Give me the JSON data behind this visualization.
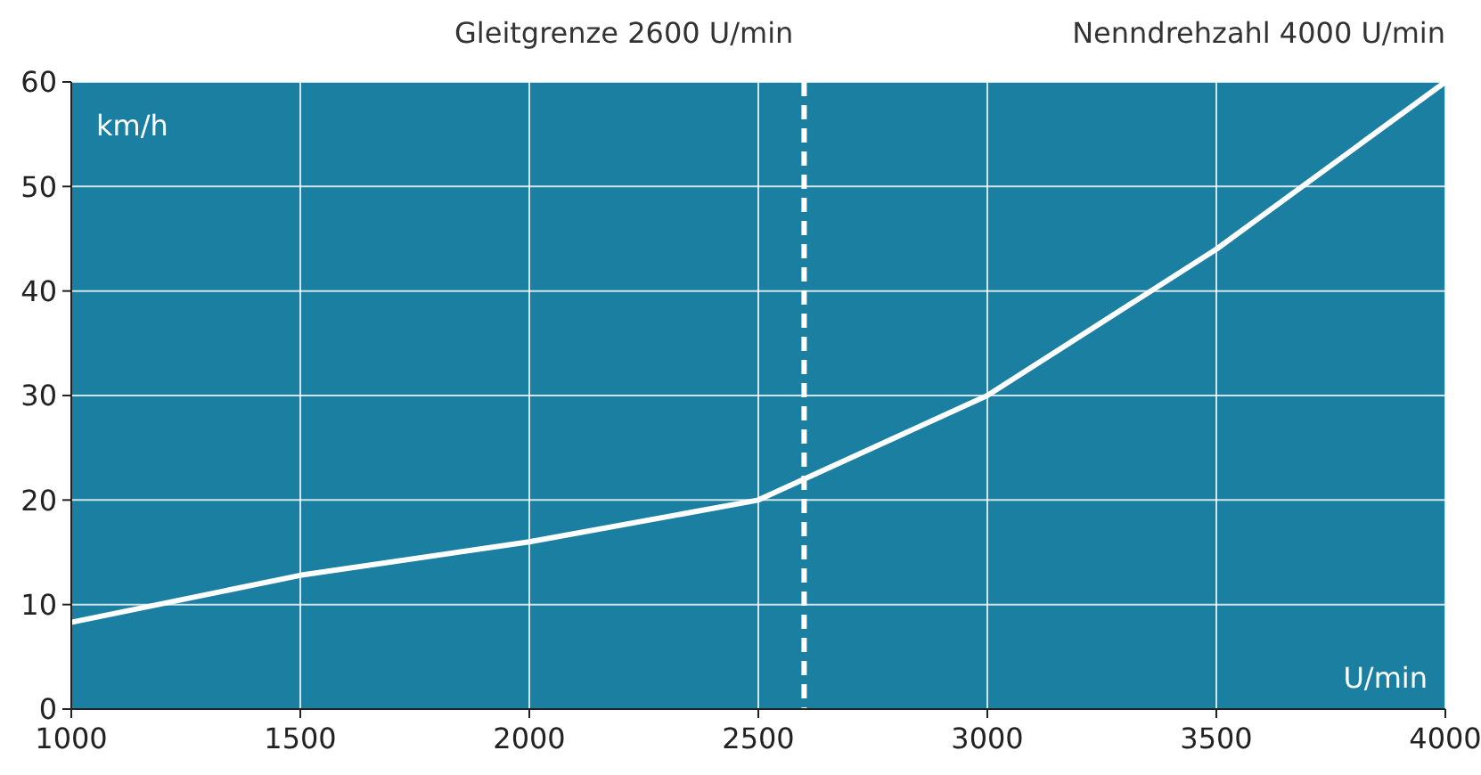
{
  "chart_data": {
    "type": "line",
    "xlabel": "U/min",
    "ylabel": "km/h",
    "x": [
      1000,
      1500,
      2000,
      2500,
      3000,
      3500,
      4000
    ],
    "series": [
      {
        "color": "#ffffff",
        "values": [
          8.3,
          12.8,
          16,
          20,
          30,
          44,
          60
        ]
      }
    ],
    "xlim": [
      1000,
      4000
    ],
    "xticks": [
      1000,
      1500,
      2000,
      2500,
      3000,
      3500,
      4000
    ],
    "ylim": [
      0,
      60
    ],
    "yticks": [
      0,
      10,
      20,
      30,
      40,
      50,
      60
    ],
    "grid": true,
    "ref_lines": [
      {
        "axis": "x",
        "value": 2600,
        "label": "Gleitgrenze 2600 U/min",
        "color": "#ffffff",
        "line_style": "dashed"
      }
    ],
    "annotations": [
      "Nenndrehzahl 4000 U/min"
    ]
  }
}
